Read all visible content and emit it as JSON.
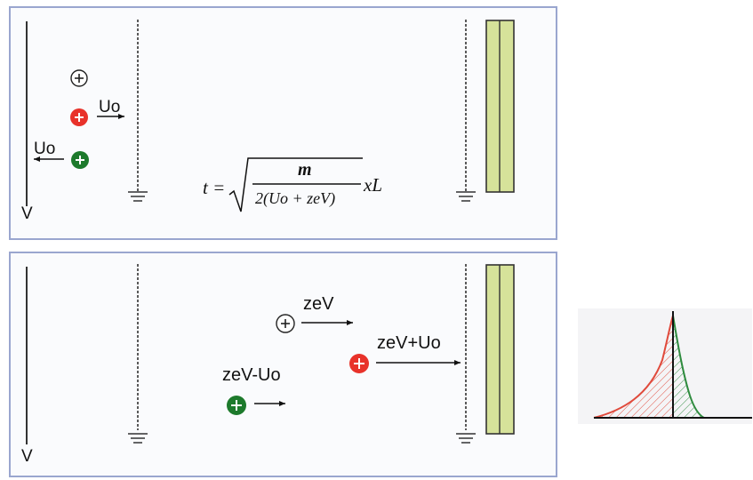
{
  "top_panel": {
    "v_label": "V",
    "uo_right_label": "Uo",
    "uo_left_label": "Uo",
    "formula": {
      "lhs": "t =",
      "numerator": "m",
      "denominator": "2(Uo + zeV)",
      "suffix": "xL"
    }
  },
  "bottom_panel": {
    "v_label": "V",
    "zev_label": "zeV",
    "zev_plus_uo_label": "zeV+Uo",
    "zev_minus_uo_label": "zeV-Uo"
  },
  "colors": {
    "ion_neutral": "#ffffff",
    "ion_red": "#e8322a",
    "ion_green": "#1d7a2c",
    "detector_fill": "#d6e29a",
    "panel_border": "#9aa6cf",
    "peak_red": "#e04a3c",
    "peak_green": "#2e8b3e"
  },
  "icons": [
    "plus-ion-icon",
    "ground-icon",
    "arrow-icon"
  ]
}
